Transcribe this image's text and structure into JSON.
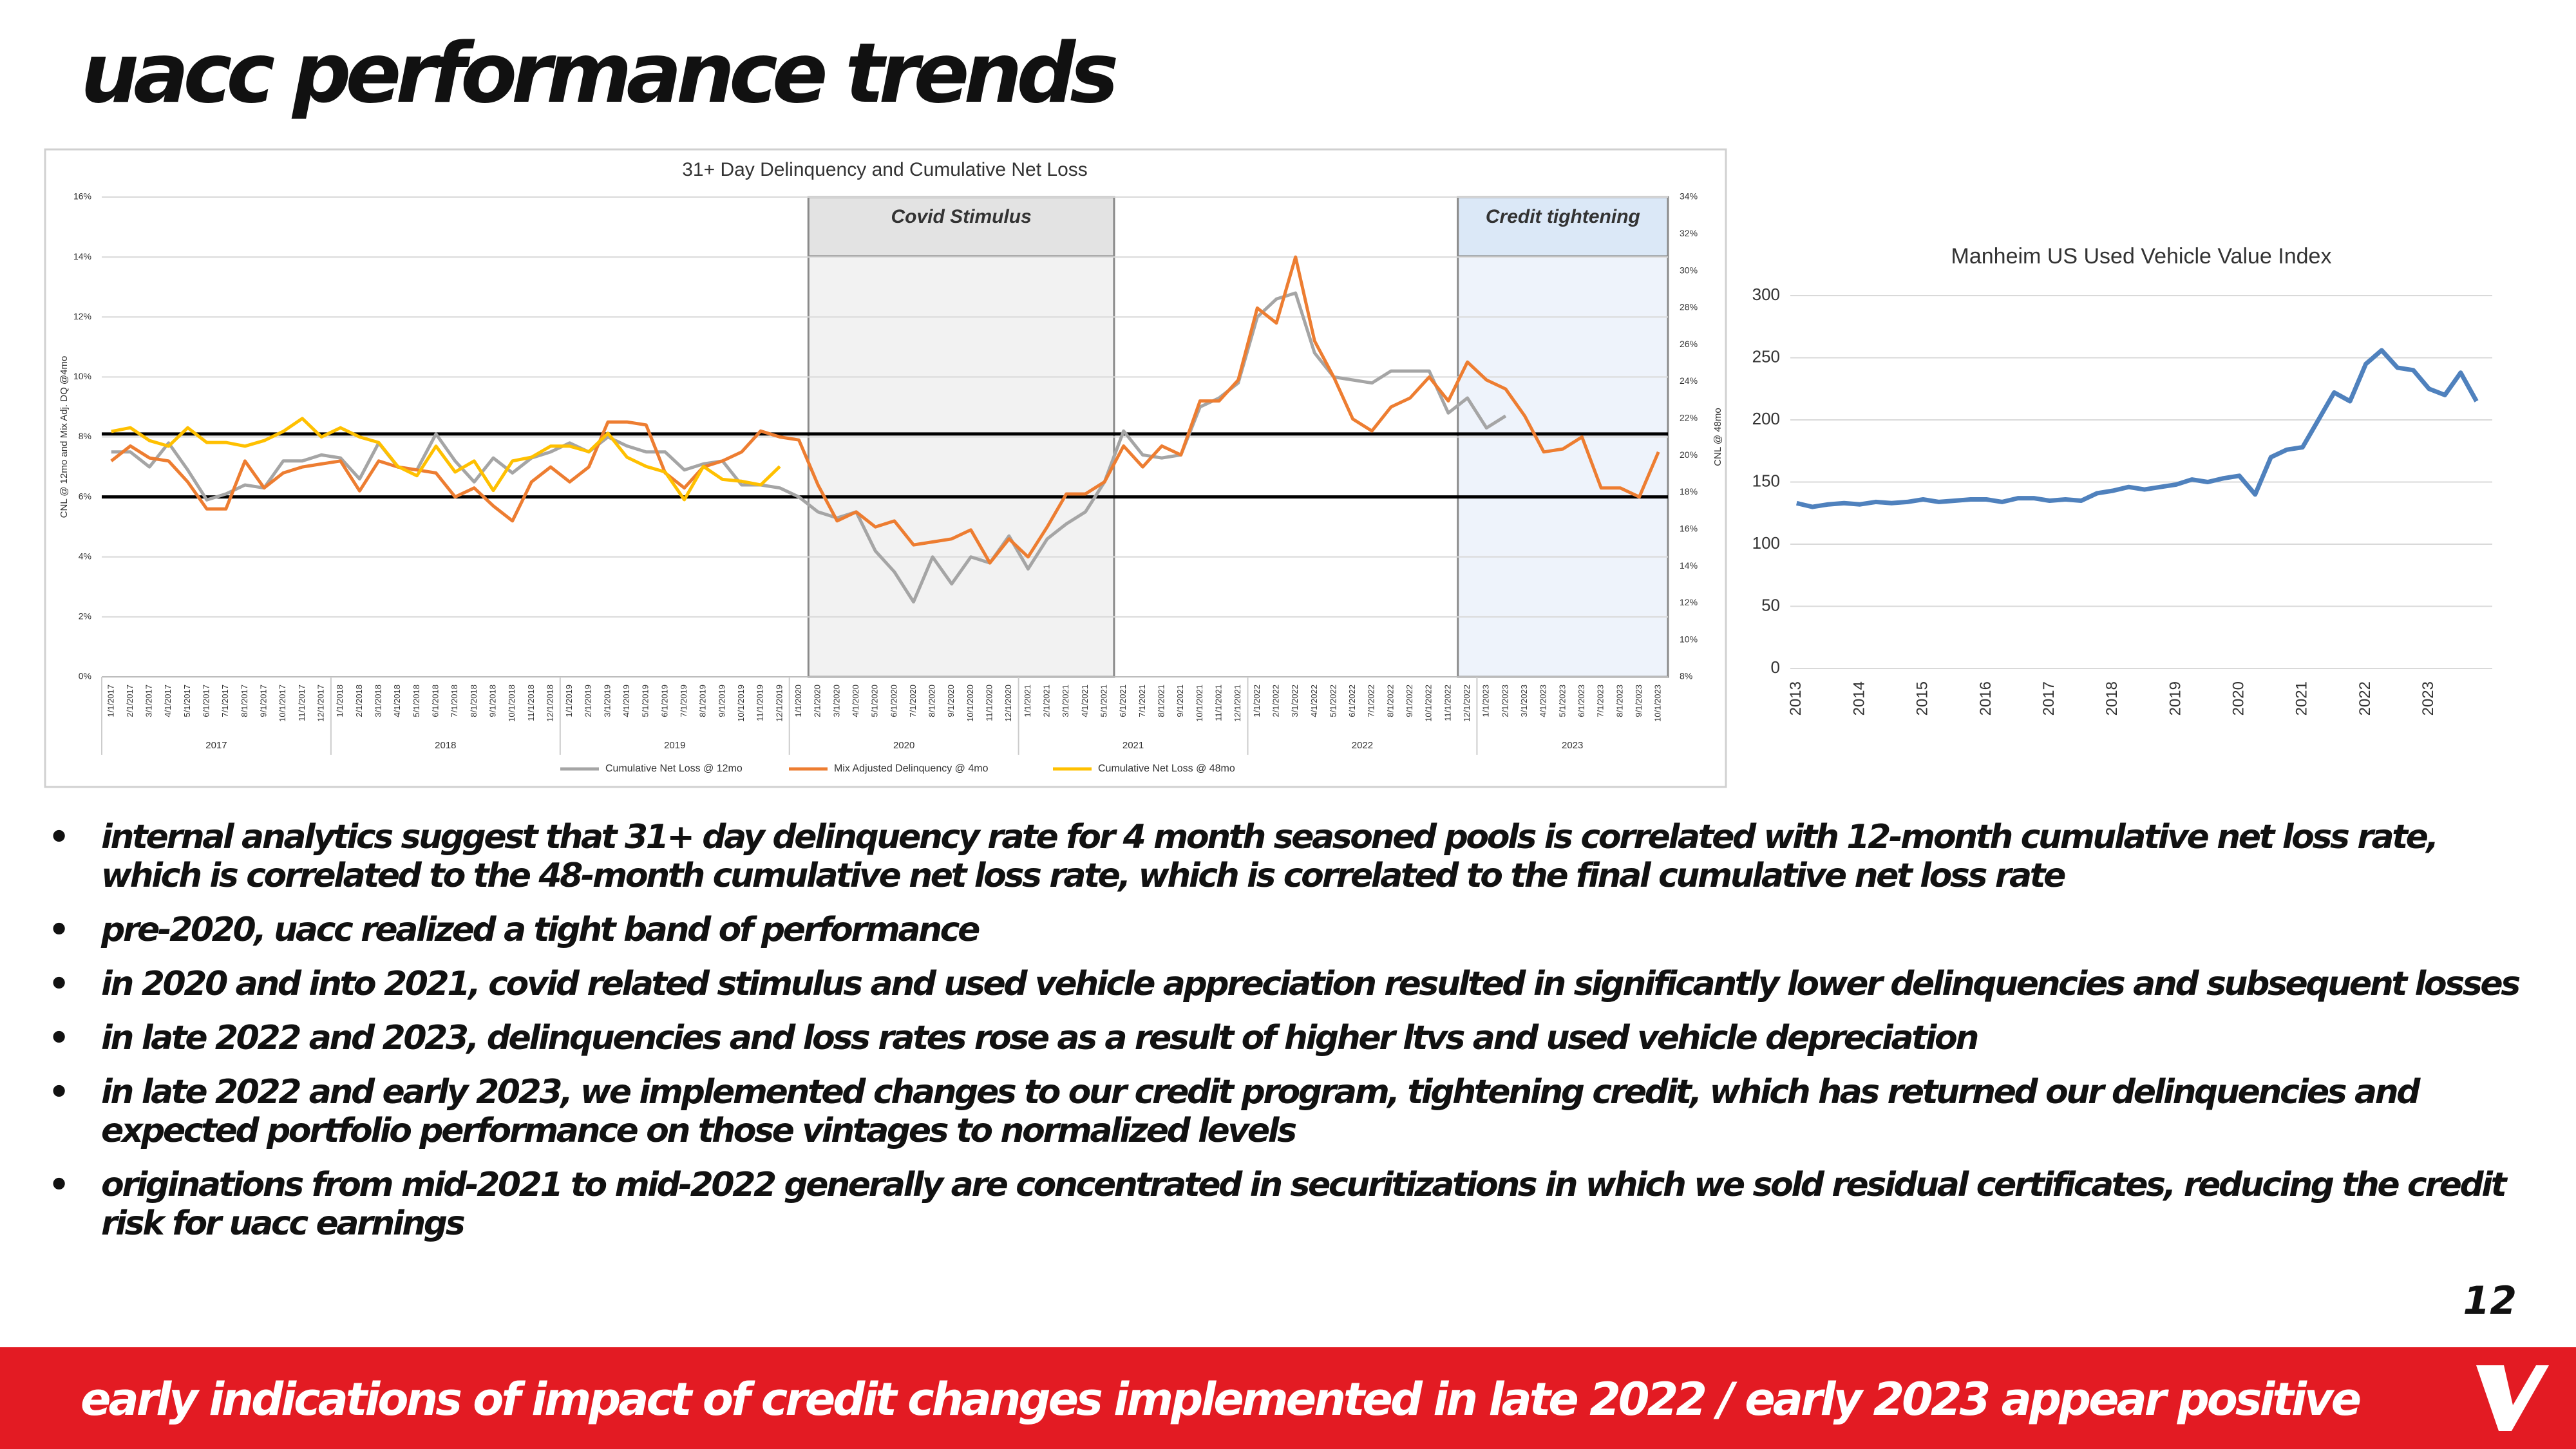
{
  "title": "uacc performance trends",
  "chart_data": [
    {
      "type": "line",
      "title": "31+ Day Delinquency and Cumulative Net Loss",
      "y_label": "CNL @ 12mo and Mix Adj. DQ @4mo",
      "y2_label": "CNL @ 48mo",
      "categories": [
        "1/1/2017",
        "2/1/2017",
        "3/1/2017",
        "4/1/2017",
        "5/1/2017",
        "6/1/2017",
        "7/1/2017",
        "8/1/2017",
        "9/1/2017",
        "10/1/2017",
        "11/1/2017",
        "12/1/2017",
        "1/1/2018",
        "2/1/2018",
        "3/1/2018",
        "4/1/2018",
        "5/1/2018",
        "6/1/2018",
        "7/1/2018",
        "8/1/2018",
        "9/1/2018",
        "10/1/2018",
        "11/1/2018",
        "12/1/2018",
        "1/1/2019",
        "2/1/2019",
        "3/1/2019",
        "4/1/2019",
        "5/1/2019",
        "6/1/2019",
        "7/1/2019",
        "8/1/2019",
        "9/1/2019",
        "10/1/2019",
        "11/1/2019",
        "12/1/2019",
        "1/1/2020",
        "2/1/2020",
        "3/1/2020",
        "4/1/2020",
        "5/1/2020",
        "6/1/2020",
        "7/1/2020",
        "8/1/2020",
        "9/1/2020",
        "10/1/2020",
        "11/1/2020",
        "12/1/2020",
        "1/1/2021",
        "2/1/2021",
        "3/1/2021",
        "4/1/2021",
        "5/1/2021",
        "6/1/2021",
        "7/1/2021",
        "8/1/2021",
        "9/1/2021",
        "10/1/2021",
        "11/1/2021",
        "12/1/2021",
        "1/1/2022",
        "2/1/2022",
        "3/1/2022",
        "4/1/2022",
        "5/1/2022",
        "6/1/2022",
        "7/1/2022",
        "8/1/2022",
        "9/1/2022",
        "10/1/2022",
        "11/1/2022",
        "12/1/2022",
        "1/1/2023",
        "2/1/2023",
        "3/1/2023",
        "4/1/2023",
        "5/1/2023",
        "6/1/2023",
        "7/1/2023",
        "8/1/2023",
        "9/1/2023",
        "10/1/2023"
      ],
      "x_groups": [
        {
          "label": "2017",
          "start": 0,
          "end": 11
        },
        {
          "label": "2018",
          "start": 12,
          "end": 23
        },
        {
          "label": "2019",
          "start": 24,
          "end": 35
        },
        {
          "label": "2020",
          "start": 36,
          "end": 47
        },
        {
          "label": "2021",
          "start": 48,
          "end": 59
        },
        {
          "label": "2022",
          "start": 60,
          "end": 71
        },
        {
          "label": "2023",
          "start": 72,
          "end": 81
        }
      ],
      "series": [
        {
          "name": "Cumulative Net Loss @ 12mo",
          "color": "#a5a5a5",
          "axis": "y",
          "values": [
            7.5,
            7.5,
            7.0,
            7.8,
            6.9,
            5.9,
            6.1,
            6.4,
            6.3,
            7.2,
            7.2,
            7.4,
            7.3,
            6.6,
            7.8,
            7.0,
            6.9,
            8.1,
            7.2,
            6.5,
            7.3,
            6.8,
            7.3,
            7.5,
            7.8,
            7.5,
            8.0,
            7.7,
            7.5,
            7.5,
            6.9,
            7.1,
            7.2,
            6.4,
            6.4,
            6.3,
            6.0,
            5.5,
            5.3,
            5.5,
            4.2,
            3.5,
            2.5,
            4.0,
            3.1,
            4.0,
            3.8,
            4.7,
            3.6,
            4.6,
            5.1,
            5.5,
            6.5,
            8.2,
            7.4,
            7.3,
            7.4,
            9.0,
            9.3,
            9.8,
            12.0,
            12.6,
            12.8,
            10.8,
            10.0,
            9.9,
            9.8,
            10.2,
            10.2,
            10.2,
            8.8,
            9.3,
            8.3,
            8.7,
            null,
            null,
            null,
            null,
            null,
            null,
            null,
            null
          ]
        },
        {
          "name": "Mix Adjusted Delinquency @ 4mo",
          "color": "#ed7d31",
          "axis": "y",
          "values": [
            7.2,
            7.7,
            7.3,
            7.2,
            6.5,
            5.6,
            5.6,
            7.2,
            6.3,
            6.8,
            7.0,
            7.1,
            7.2,
            6.2,
            7.2,
            7.0,
            6.9,
            6.8,
            6.0,
            6.3,
            5.7,
            5.2,
            6.5,
            7.0,
            6.5,
            7.0,
            8.5,
            8.5,
            8.4,
            6.8,
            6.3,
            7.0,
            7.2,
            7.5,
            8.2,
            8.0,
            7.9,
            6.4,
            5.2,
            5.5,
            5.0,
            5.2,
            4.4,
            4.5,
            4.6,
            4.9,
            3.8,
            4.6,
            4.0,
            5.0,
            6.1,
            6.1,
            6.5,
            7.7,
            7.0,
            7.7,
            7.4,
            9.2,
            9.2,
            9.9,
            12.3,
            11.8,
            14.0,
            11.2,
            10.0,
            8.6,
            8.2,
            9.0,
            9.3,
            10.0,
            9.2,
            10.5,
            9.9,
            9.6,
            8.7,
            7.5,
            7.6,
            8.0,
            6.3,
            6.3,
            6.0,
            7.5
          ]
        },
        {
          "name": "Cumulative Net Loss @ 48mo",
          "color": "#ffc000",
          "axis": "y2",
          "values": [
            21.3,
            21.5,
            20.8,
            20.5,
            21.5,
            20.7,
            20.7,
            20.5,
            20.8,
            21.3,
            22.0,
            21.0,
            21.5,
            21.0,
            20.7,
            19.4,
            18.9,
            20.5,
            19.1,
            19.7,
            18.1,
            19.7,
            19.9,
            20.5,
            20.5,
            20.2,
            21.2,
            19.9,
            19.4,
            19.1,
            17.6,
            19.4,
            18.7,
            18.6,
            18.4,
            19.4,
            null,
            null,
            null,
            null,
            null,
            null,
            null,
            null,
            null,
            null,
            null,
            null,
            null,
            null,
            null,
            null,
            null,
            null,
            null,
            null,
            null,
            null,
            null,
            null,
            null,
            null,
            null,
            null,
            null,
            null,
            null,
            null,
            null,
            null,
            null,
            null,
            null,
            null,
            null,
            null,
            null,
            null,
            null,
            null,
            null,
            null
          ]
        }
      ],
      "reference_lines": [
        8.1,
        6.0
      ],
      "shaded_regions": [
        {
          "label": "Covid Stimulus",
          "start": 37,
          "end": 52,
          "color": "#f2f2f2"
        },
        {
          "label": "Credit tightening",
          "start": 71,
          "end": 81,
          "color": "#eef3fb"
        }
      ],
      "ylim": [
        0,
        16
      ],
      "yticks": [
        {
          "value": 0,
          "label": "0%"
        },
        {
          "value": 2,
          "label": "2%"
        },
        {
          "value": 4,
          "label": "4%"
        },
        {
          "value": 6,
          "label": "6%"
        },
        {
          "value": 8,
          "label": "8%"
        },
        {
          "value": 10,
          "label": "10%"
        },
        {
          "value": 12,
          "label": "12%"
        },
        {
          "value": 14,
          "label": "14%"
        },
        {
          "value": 16,
          "label": "16%"
        }
      ],
      "y2lim": [
        8,
        34
      ],
      "y2ticks": [
        {
          "value": 8,
          "label": "8%"
        },
        {
          "value": 10,
          "label": "10%"
        },
        {
          "value": 12,
          "label": "12%"
        },
        {
          "value": 14,
          "label": "14%"
        },
        {
          "value": 16,
          "label": "16%"
        },
        {
          "value": 18,
          "label": "18%"
        },
        {
          "value": 20,
          "label": "20%"
        },
        {
          "value": 22,
          "label": "22%"
        },
        {
          "value": 24,
          "label": "24%"
        },
        {
          "value": 26,
          "label": "26%"
        },
        {
          "value": 28,
          "label": "28%"
        },
        {
          "value": 30,
          "label": "30%"
        },
        {
          "value": 32,
          "label": "32%"
        },
        {
          "value": 34,
          "label": "34%"
        }
      ],
      "grid": true,
      "legend": "bottom"
    },
    {
      "type": "line",
      "title": "Manheim US Used Vehicle Value Index",
      "x": [
        2013,
        2013.25,
        2013.5,
        2013.75,
        2014,
        2014.25,
        2014.5,
        2014.75,
        2015,
        2015.25,
        2015.5,
        2015.75,
        2016,
        2016.25,
        2016.5,
        2016.75,
        2017,
        2017.25,
        2017.5,
        2017.75,
        2018,
        2018.25,
        2018.5,
        2018.75,
        2019,
        2019.25,
        2019.5,
        2019.75,
        2020,
        2020.25,
        2020.5,
        2020.75,
        2021,
        2021.25,
        2021.5,
        2021.75,
        2022,
        2022.25,
        2022.5,
        2022.75,
        2023,
        2023.25,
        2023.5,
        2023.75
      ],
      "series": [
        {
          "name": "Manheim US Used Vehicle Value Index",
          "color": "#4f81bd",
          "values": [
            133,
            130,
            132,
            133,
            132,
            134,
            133,
            134,
            136,
            134,
            135,
            136,
            136,
            134,
            137,
            137,
            135,
            136,
            135,
            141,
            143,
            146,
            144,
            146,
            148,
            152,
            150,
            153,
            155,
            140,
            170,
            176,
            178,
            200,
            222,
            215,
            245,
            256,
            242,
            240,
            225,
            220,
            238,
            215
          ]
        }
      ],
      "xlim": [
        2012.9,
        2024
      ],
      "xticks": [
        2013,
        2014,
        2015,
        2016,
        2017,
        2018,
        2019,
        2020,
        2021,
        2022,
        2023
      ],
      "ylim": [
        0,
        300
      ],
      "yticks": [
        0,
        50,
        100,
        150,
        200,
        250,
        300
      ],
      "grid": true
    }
  ],
  "bullets": [
    "internal analytics suggest that 31+ day delinquency rate for 4 month seasoned pools is correlated with 12-month cumulative net loss rate, which is correlated to the 48-month cumulative net loss rate, which is correlated to the final cumulative net loss rate",
    "pre-2020, uacc realized a tight band of performance",
    "in 2020 and into 2021, covid related stimulus and used vehicle appreciation resulted in significantly lower delinquencies and subsequent losses",
    "in late 2022 and 2023, delinquencies and loss rates rose as a result of higher ltvs and used vehicle depreciation",
    "in late 2022 and early 2023, we implemented changes to our credit program, tightening credit, which has returned our delinquencies and expected portfolio performance on those vintages to normalized levels",
    "originations from mid-2021 to mid-2022 generally are concentrated in securitizations in which we sold residual certificates, reducing the credit risk for uacc earnings"
  ],
  "page_number": "12",
  "footer": "early indications of impact of credit changes implemented in late 2022 / early 2023 appear positive"
}
